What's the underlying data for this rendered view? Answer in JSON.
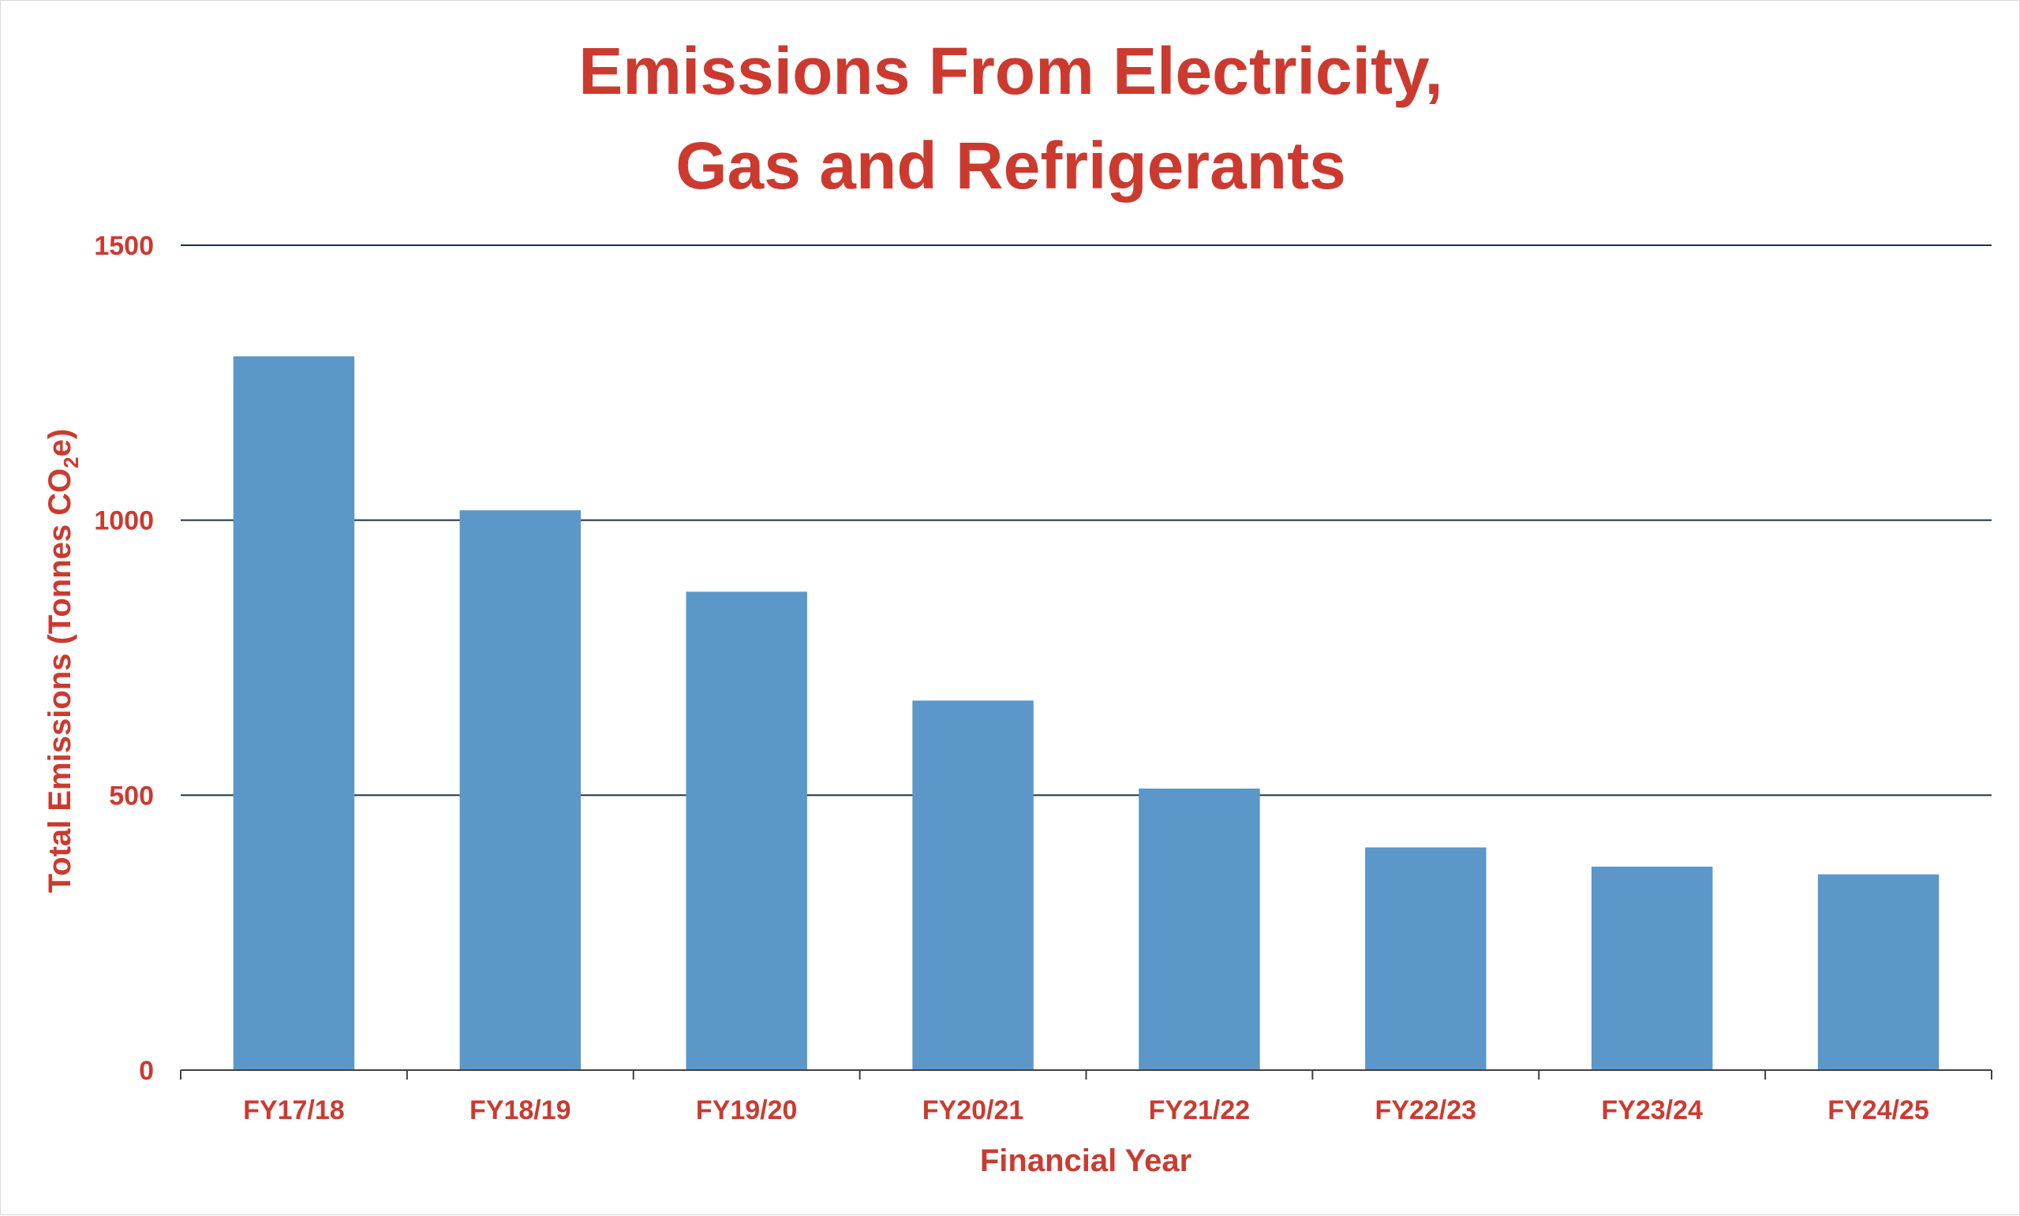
{
  "chart_data": {
    "type": "bar",
    "title_lines": [
      "Emissions From Electricity,",
      "Gas and Refrigerants"
    ],
    "xlabel": "Financial Year",
    "ylabel": {
      "before_sub": "Total Emissions (Tonnes CO",
      "sub": "2",
      "after_sub": "e)"
    },
    "categories": [
      "FY17/18",
      "FY18/19",
      "FY19/20",
      "FY20/21",
      "FY21/22",
      "FY22/23",
      "FY23/24",
      "FY24/25"
    ],
    "values": [
      1298,
      1018,
      870,
      672,
      512,
      405,
      370,
      356
    ],
    "ylim": [
      0,
      1500
    ],
    "yticks": [
      "0",
      "500",
      "1000",
      "1500"
    ],
    "grid": true,
    "colors": {
      "bar": "#5b98c9",
      "text": "#cc3a2f",
      "gridline": "#1f2f3f",
      "axis": "#404040"
    }
  }
}
